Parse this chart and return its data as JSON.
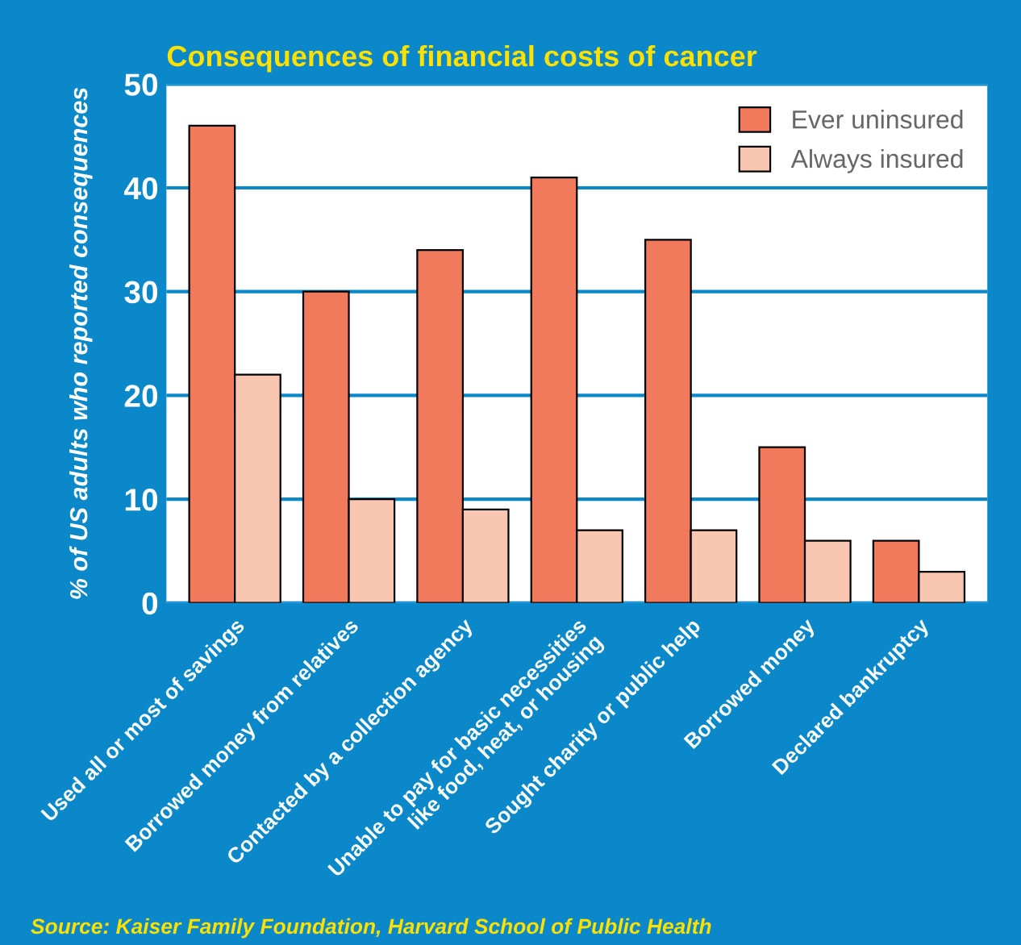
{
  "chart_data": {
    "type": "bar",
    "title": "Consequences of financial costs of cancer",
    "ylabel": "% of US adults who reported consequences",
    "categories": [
      "Used all or most of savings",
      "Borrowed money from relatives",
      "Contacted by a collection agency",
      "Unable to pay for basic necessities\nlike food, heat, or housing",
      "Sought charity or public help",
      "Borrowed money",
      "Declared bankruptcy"
    ],
    "series": [
      {
        "name": "Ever uninsured",
        "color": "#f17a5c",
        "values": [
          46,
          30,
          34,
          41,
          35,
          15,
          6
        ]
      },
      {
        "name": "Always insured",
        "color": "#f9c6b2",
        "values": [
          22,
          10,
          9,
          7,
          7,
          6,
          3
        ]
      }
    ],
    "ylim": [
      0,
      50
    ],
    "yticks": [
      0,
      10,
      20,
      30,
      40,
      50
    ],
    "grid": "y",
    "legend": "top right",
    "annotations": [
      "Source: Kaiser Family Foundation, Harvard School of Public Health"
    ]
  }
}
